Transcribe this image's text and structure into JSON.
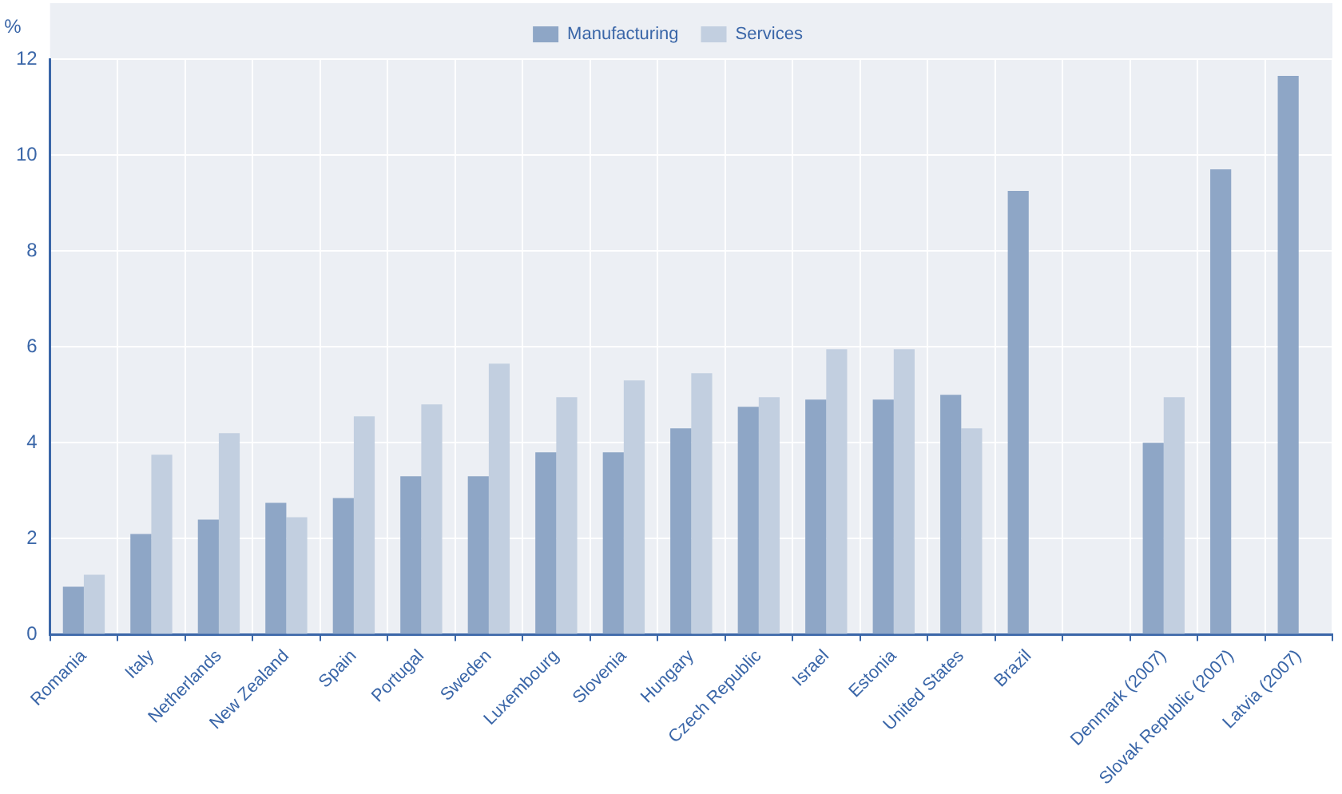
{
  "chart_data": {
    "type": "bar",
    "ylabel": "%",
    "categories": [
      "Romania",
      "Italy",
      "Netherlands",
      "New Zealand",
      "Spain",
      "Portugal",
      "Sweden",
      "Luxembourg",
      "Slovenia",
      "Hungary",
      "Czech Republic",
      "Israel",
      "Estonia",
      "United States",
      "Brazil",
      null,
      "Denmark (2007)",
      "Slovak Republic (2007)",
      "Latvia (2007)"
    ],
    "series": [
      {
        "name": "Manufacturing",
        "color": "#8ea6c6",
        "values": [
          1.0,
          2.1,
          2.4,
          2.75,
          2.85,
          3.3,
          3.3,
          3.8,
          3.8,
          4.3,
          4.75,
          4.9,
          4.9,
          5.0,
          9.25,
          null,
          4.0,
          9.7,
          11.65
        ]
      },
      {
        "name": "Services",
        "color": "#c2cfe0",
        "values": [
          1.25,
          3.75,
          4.2,
          2.45,
          4.55,
          4.8,
          5.65,
          4.95,
          5.3,
          5.45,
          4.95,
          5.95,
          5.95,
          4.3,
          null,
          null,
          4.95,
          null,
          null
        ]
      }
    ],
    "ylim": [
      0,
      12
    ],
    "yticks": [
      0,
      2,
      4,
      6,
      8,
      10,
      12
    ],
    "grid": true,
    "legend": "top"
  }
}
